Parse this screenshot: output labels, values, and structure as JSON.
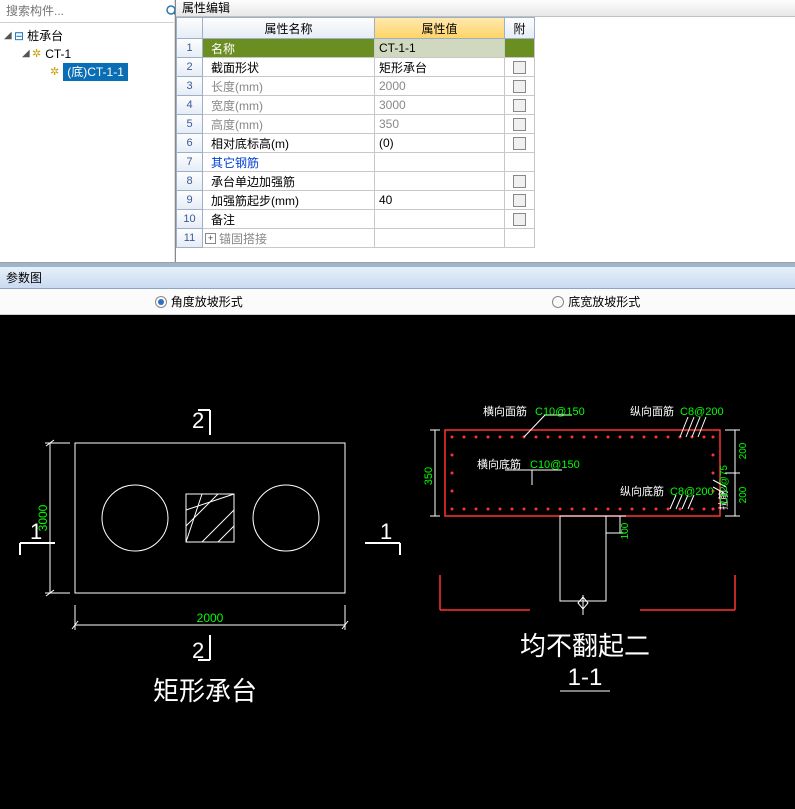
{
  "search": {
    "placeholder": "搜索构件..."
  },
  "tree": {
    "root": "桩承台",
    "item1": "CT-1",
    "item2": "(底)CT-1-1"
  },
  "props": {
    "panel_title": "属性编辑",
    "col_name": "属性名称",
    "col_value": "属性值",
    "col_attach": "附",
    "rows": [
      {
        "n": "1",
        "name": "名称",
        "value": "CT-1-1",
        "attach": "none",
        "sel": true
      },
      {
        "n": "2",
        "name": "截面形状",
        "value": "矩形承台",
        "attach": "box"
      },
      {
        "n": "3",
        "name": "长度(mm)",
        "value": "2000",
        "attach": "box",
        "gray": true
      },
      {
        "n": "4",
        "name": "宽度(mm)",
        "value": "3000",
        "attach": "box",
        "gray": true
      },
      {
        "n": "5",
        "name": "高度(mm)",
        "value": "350",
        "attach": "box",
        "gray": true
      },
      {
        "n": "6",
        "name": "相对底标高(m)",
        "value": "(0)",
        "attach": "box"
      },
      {
        "n": "7",
        "name": "其它钢筋",
        "value": "",
        "attach": "none",
        "blue": true
      },
      {
        "n": "8",
        "name": "承台单边加强筋",
        "value": "",
        "attach": "box"
      },
      {
        "n": "9",
        "name": "加强筋起步(mm)",
        "value": "40",
        "attach": "box"
      },
      {
        "n": "10",
        "name": "备注",
        "value": "",
        "attach": "box"
      },
      {
        "n": "11",
        "name": "锚固搭接",
        "value": "",
        "attach": "none",
        "gray": true,
        "expand": true
      }
    ]
  },
  "param": {
    "title": "参数图",
    "radio1": "角度放坡形式",
    "radio2": "底宽放坡形式"
  },
  "drawing": {
    "plan": {
      "width_label": "2000",
      "height_label": "3000",
      "title": "矩形承台",
      "mark1": "1",
      "mark2": "2"
    },
    "section": {
      "h_label": "350",
      "h2_label": "100",
      "r1_label": "200",
      "r2_label": "200",
      "label_hxmj": "横向面筋",
      "val_hxmj": "C10@150",
      "label_zxmj": "纵向面筋",
      "val_zxmj": "C8@200",
      "label_hxdj": "横向底筋",
      "val_hxdj": "C10@150",
      "label_zxdj": "纵向底筋",
      "val_zxdj": "C8@200",
      "label_lmj": "拉筋",
      "val_lmj": "C12@75",
      "title": "均不翻起二",
      "section_mark": "1-1"
    }
  }
}
